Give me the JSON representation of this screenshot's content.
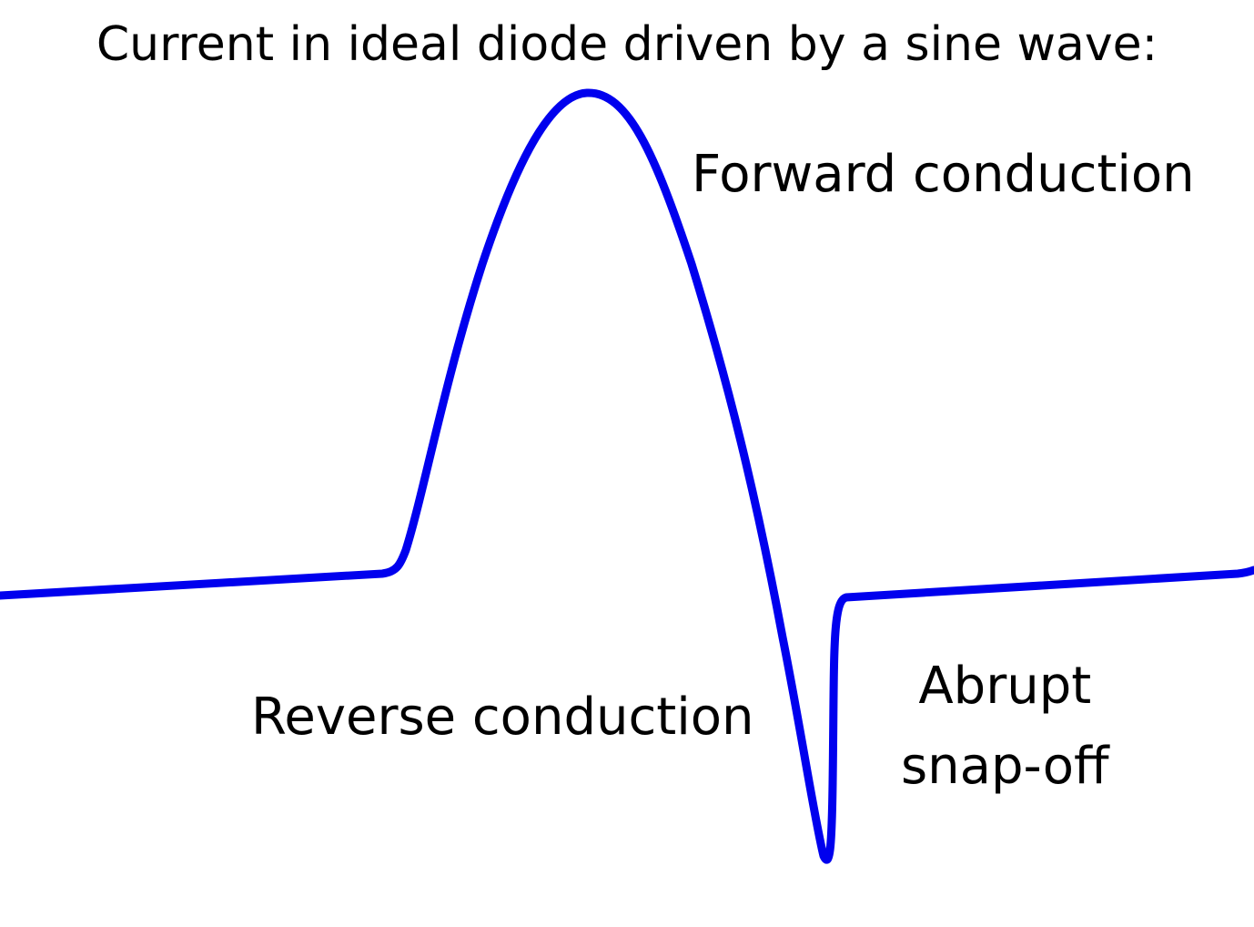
{
  "title": "Current in ideal diode driven by a sine wave:",
  "labels": {
    "forward": "Forward conduction",
    "reverse": "Reverse conduction",
    "snap_line1": "Abrupt",
    "snap_line2": "snap-off"
  },
  "colors": {
    "curve": "#0000ee",
    "text": "#000000",
    "background": "#ffffff"
  }
}
